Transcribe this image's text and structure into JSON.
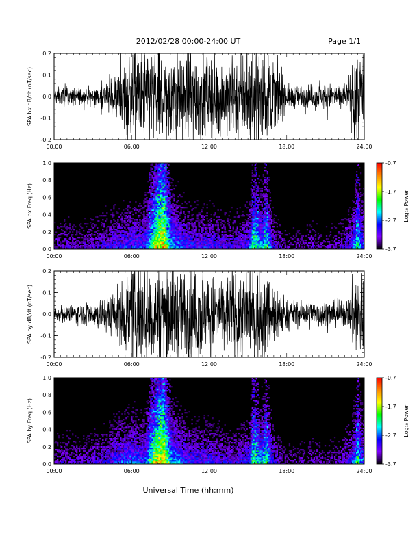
{
  "header": {
    "title": "2012/02/28  00:00-24:00 UT",
    "page": "Page 1/1"
  },
  "footer": {
    "xlabel": "Universal Time (hh:mm)"
  },
  "colorbar": {
    "label": "Log₁₀ Power",
    "ticks": [
      "-0.7",
      "-1.7",
      "-2.7",
      "-3.7"
    ],
    "range": [
      -3.7,
      -0.7
    ],
    "stops": [
      "#ff0000",
      "#ff8800",
      "#ffff00",
      "#00ff00",
      "#00ffff",
      "#0000ff",
      "#8000ff",
      "#000000"
    ]
  },
  "chart_data": [
    {
      "type": "line",
      "ylabel": "SPA bx dB/dt (nT/sec)",
      "xlim": [
        "00:00",
        "24:00"
      ],
      "ylim": [
        -0.2,
        0.2
      ],
      "xticks": [
        "00:00",
        "06:00",
        "12:00",
        "18:00",
        "24:00"
      ],
      "yticks": [
        "0.2",
        "0.1",
        "0.0",
        "-0.1",
        "-0.2"
      ],
      "envelope": {
        "x_hours": [
          0,
          1,
          2,
          3,
          4,
          5,
          6,
          7,
          7.5,
          8,
          9,
          10,
          11,
          12,
          13,
          14,
          15,
          15.5,
          16,
          16.5,
          17,
          18,
          19,
          20,
          21,
          22,
          22.8,
          23.3,
          24
        ],
        "amplitude": [
          0.035,
          0.04,
          0.035,
          0.04,
          0.06,
          0.1,
          0.2,
          0.2,
          0.2,
          0.2,
          0.2,
          0.18,
          0.2,
          0.17,
          0.15,
          0.17,
          0.2,
          0.2,
          0.2,
          0.17,
          0.15,
          0.05,
          0.045,
          0.05,
          0.055,
          0.05,
          0.06,
          0.2,
          0.2
        ]
      }
    },
    {
      "type": "heatmap",
      "ylabel": "SPA bx Freq (Hz)",
      "xlim": [
        "00:00",
        "24:00"
      ],
      "ylim": [
        0.0,
        1.0
      ],
      "xticks": [
        "00:00",
        "06:00",
        "12:00",
        "18:00",
        "24:00"
      ],
      "yticks": [
        "1.0",
        "0.8",
        "0.6",
        "0.4",
        "0.2",
        "0.0"
      ],
      "zlim": [
        -3.7,
        -0.7
      ],
      "activity": {
        "x_hours": [
          0,
          1,
          2,
          3,
          4,
          5,
          6,
          7,
          7.5,
          8,
          8.5,
          9,
          10,
          11,
          12,
          13,
          14,
          15,
          15.5,
          16,
          16.5,
          17,
          18,
          19,
          20,
          21,
          22,
          23,
          23.5,
          24
        ],
        "level": [
          0.35,
          0.4,
          0.35,
          0.4,
          0.45,
          0.5,
          0.55,
          0.55,
          0.75,
          0.95,
          1.0,
          0.7,
          0.55,
          0.5,
          0.5,
          0.45,
          0.45,
          0.5,
          0.8,
          0.65,
          0.75,
          0.45,
          0.3,
          0.3,
          0.35,
          0.3,
          0.35,
          0.5,
          0.75,
          0.55
        ]
      }
    },
    {
      "type": "line",
      "ylabel": "SPA by dB/dt (nT/sec)",
      "xlim": [
        "00:00",
        "24:00"
      ],
      "ylim": [
        -0.2,
        0.2
      ],
      "xticks": [
        "00:00",
        "06:00",
        "12:00",
        "18:00",
        "24:00"
      ],
      "yticks": [
        "0.2",
        "0.1",
        "0.0",
        "-0.1",
        "-0.2"
      ],
      "envelope": {
        "x_hours": [
          0,
          1,
          2,
          3,
          4,
          5,
          6,
          7,
          7.5,
          8,
          9,
          10,
          11,
          12,
          13,
          14,
          15,
          15.5,
          16,
          16.5,
          17,
          18,
          19,
          20,
          21,
          22,
          22.8,
          23.3,
          24
        ],
        "amplitude": [
          0.03,
          0.035,
          0.04,
          0.055,
          0.07,
          0.11,
          0.2,
          0.2,
          0.2,
          0.2,
          0.2,
          0.18,
          0.2,
          0.16,
          0.15,
          0.17,
          0.2,
          0.2,
          0.2,
          0.17,
          0.14,
          0.06,
          0.05,
          0.06,
          0.06,
          0.05,
          0.06,
          0.2,
          0.2
        ]
      }
    },
    {
      "type": "heatmap",
      "ylabel": "SPA by Freq (Hz)",
      "xlim": [
        "00:00",
        "24:00"
      ],
      "ylim": [
        0.0,
        1.0
      ],
      "xticks": [
        "00:00",
        "06:00",
        "12:00",
        "18:00",
        "24:00"
      ],
      "yticks": [
        "1.0",
        "0.8",
        "0.6",
        "0.4",
        "0.2",
        "0.0"
      ],
      "zlim": [
        -3.7,
        -0.7
      ],
      "activity": {
        "x_hours": [
          0,
          1,
          2,
          3,
          4,
          5,
          6,
          7,
          7.5,
          8,
          8.5,
          9,
          10,
          11,
          12,
          13,
          14,
          15,
          15.5,
          16,
          16.5,
          17,
          18,
          19,
          20,
          21,
          22,
          23,
          23.5,
          24
        ],
        "level": [
          0.35,
          0.4,
          0.35,
          0.4,
          0.45,
          0.55,
          0.6,
          0.55,
          0.8,
          0.95,
          1.0,
          0.7,
          0.55,
          0.5,
          0.5,
          0.45,
          0.45,
          0.5,
          0.8,
          0.65,
          0.75,
          0.45,
          0.3,
          0.3,
          0.35,
          0.3,
          0.35,
          0.5,
          0.75,
          0.55
        ]
      }
    }
  ]
}
